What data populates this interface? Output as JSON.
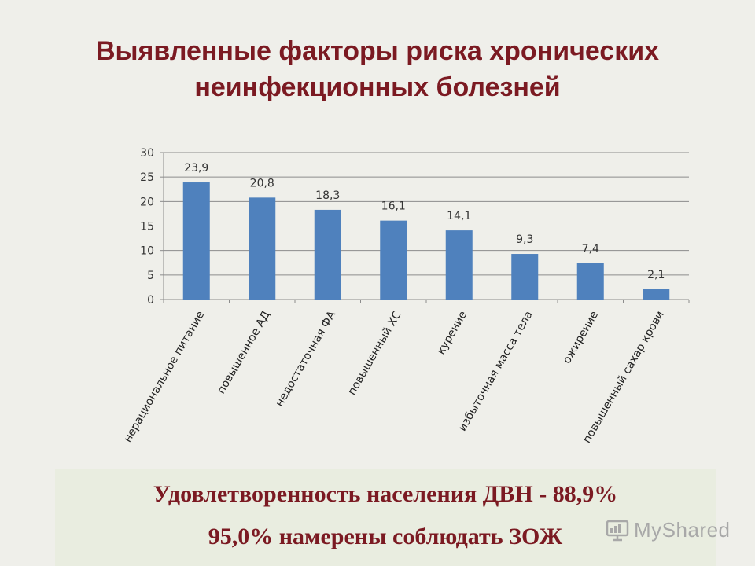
{
  "slide": {
    "title_lines": [
      "Выявленные факторы риска хронических",
      "неинфекционных болезней"
    ],
    "summary": {
      "line1": "Удовлетворенность населения ДВН - 88,9%",
      "line2": "95,0% намерены соблюдать ЗОЖ"
    },
    "watermark": "MyShared",
    "watermark_icon": "presentation-icon",
    "colors": {
      "title": "#7b1a22",
      "summary_text": "#7b1a22",
      "bar": "#4f81bd",
      "background": "#efefea",
      "summary_background": "#e9ede0"
    }
  },
  "chart_data": {
    "type": "bar",
    "title": "",
    "xlabel": "",
    "ylabel": "",
    "categories": [
      "нерациональное питание",
      "повышенное АД",
      "недостаточная ФА",
      "повышенный ХС",
      "курение",
      "избыточная масса тела",
      "ожирение",
      "повышенный сахар крови"
    ],
    "values": [
      23.9,
      20.8,
      18.3,
      16.1,
      14.1,
      9.3,
      7.4,
      2.1
    ],
    "value_labels": [
      "23,9",
      "20,8",
      "18,3",
      "16,1",
      "14,1",
      "9,3",
      "7,4",
      "2,1"
    ],
    "ylim": [
      0,
      30
    ],
    "yticks": [
      0,
      5,
      10,
      15,
      20,
      25,
      30
    ],
    "ytick_labels": [
      "0",
      "5",
      "10",
      "15",
      "20",
      "25",
      "30"
    ],
    "grid": true,
    "legend": "none"
  }
}
